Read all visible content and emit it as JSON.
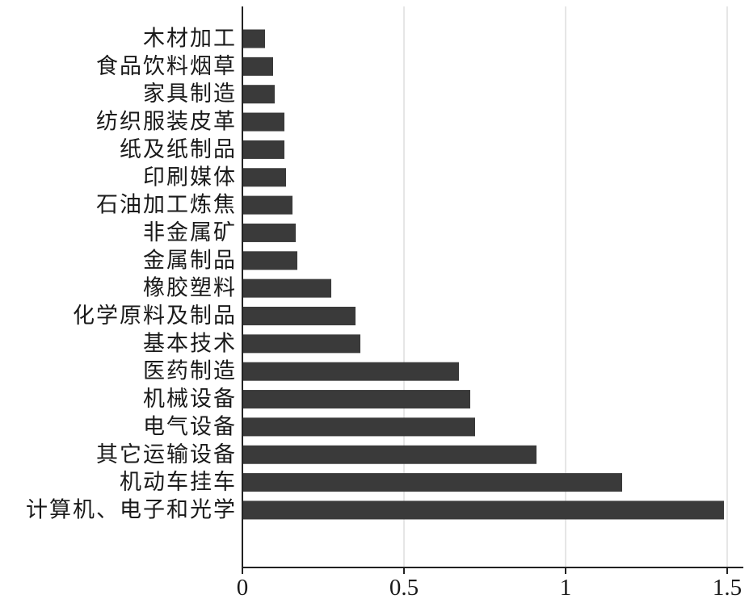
{
  "chart_data": {
    "type": "bar",
    "orientation": "horizontal",
    "title": "",
    "xlabel": "",
    "ylabel": "",
    "categories": [
      "木材加工",
      "食品饮料烟草",
      "家具制造",
      "纺织服装皮革",
      "纸及纸制品",
      "印刷媒体",
      "石油加工炼焦",
      "非金属矿",
      "金属制品",
      "橡胶塑料",
      "化学原料及制品",
      "基本技术",
      "医药制造",
      "机械设备",
      "电气设备",
      "其它运输设备",
      "机动车挂车",
      "计算机、电子和光学"
    ],
    "values": [
      0.07,
      0.095,
      0.1,
      0.13,
      0.13,
      0.135,
      0.155,
      0.165,
      0.17,
      0.275,
      0.35,
      0.365,
      0.67,
      0.705,
      0.72,
      0.91,
      1.175,
      1.49
    ],
    "xlim": [
      0,
      1.55
    ],
    "xticks": [
      0,
      0.5,
      1,
      1.5
    ],
    "xtick_labels": [
      "0",
      "0.5",
      "1",
      "1.5"
    ],
    "grid": true,
    "colors": {
      "bar": "#3a3a3a",
      "grid": "#d6d6d6",
      "axis": "#222222"
    }
  }
}
